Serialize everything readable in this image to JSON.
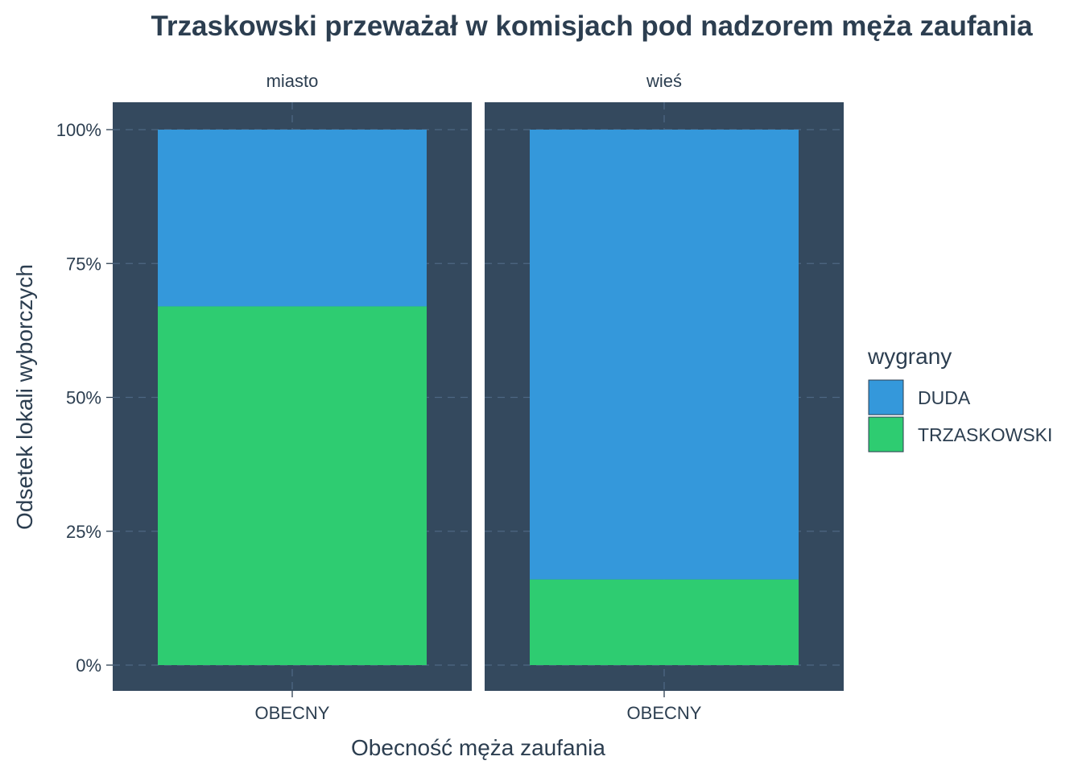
{
  "chart_data": {
    "type": "bar",
    "stacked": true,
    "position": "fill",
    "title": "Trzaskowski przeważał w komisjach pod nadzorem męża zaufania",
    "xlabel": "Obecność męża zaufania",
    "ylabel": "Odsetek lokali wyborczych",
    "ylim": [
      0,
      1
    ],
    "y_ticks": [
      {
        "value": 0,
        "label": "0%"
      },
      {
        "value": 0.25,
        "label": "25%"
      },
      {
        "value": 0.5,
        "label": "50%"
      },
      {
        "value": 0.75,
        "label": "75%"
      },
      {
        "value": 1,
        "label": "100%"
      }
    ],
    "grid": true,
    "legend": {
      "title": "wygrany",
      "position": "right",
      "entries": [
        {
          "label": "DUDA",
          "color": "#3498db"
        },
        {
          "label": "TRZASKOWSKI",
          "color": "#2ecc71"
        }
      ]
    },
    "colors": {
      "panel_background": "#34495e",
      "grid": "#4d6783",
      "text": "#2c3e50"
    },
    "facets": [
      {
        "label": "miasto",
        "categories": [
          "OBECNY"
        ],
        "series": [
          {
            "name": "TRZASKOWSKI",
            "values": [
              0.67
            ]
          },
          {
            "name": "DUDA",
            "values": [
              0.33
            ]
          }
        ]
      },
      {
        "label": "wieś",
        "categories": [
          "OBECNY"
        ],
        "series": [
          {
            "name": "TRZASKOWSKI",
            "values": [
              0.16
            ]
          },
          {
            "name": "DUDA",
            "values": [
              0.84
            ]
          }
        ]
      }
    ]
  }
}
